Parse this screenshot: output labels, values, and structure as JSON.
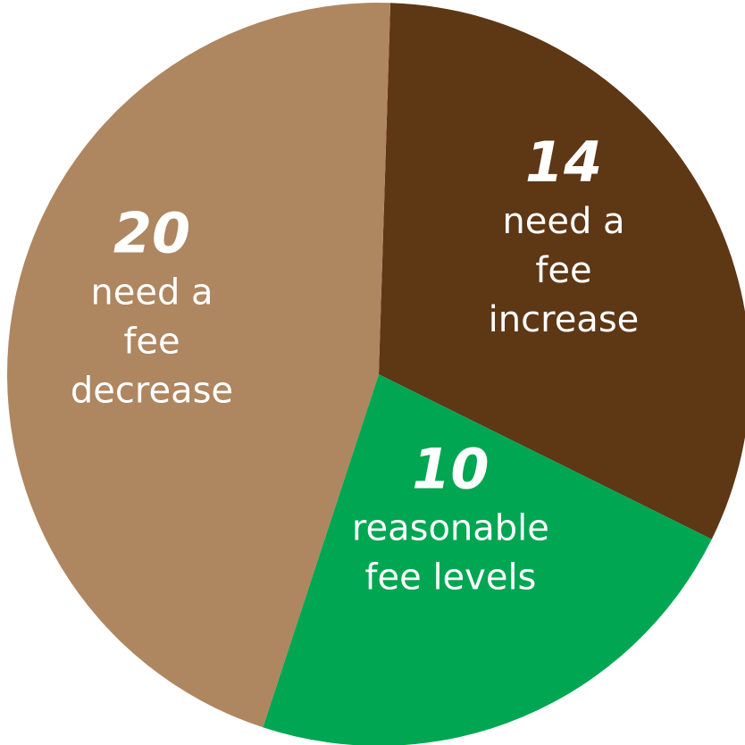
{
  "chart_data": {
    "type": "pie",
    "slices": [
      {
        "value": 14,
        "value_label": "14",
        "label_lines": [
          "need a",
          "fee",
          "increase"
        ],
        "color": "#5e3715"
      },
      {
        "value": 10,
        "value_label": "10",
        "label_lines": [
          "reasonable",
          "fee levels"
        ],
        "color": "#00a651"
      },
      {
        "value": 20,
        "value_label": "20",
        "label_lines": [
          "need a",
          "fee",
          "decrease"
        ],
        "color": "#ae8660"
      }
    ]
  }
}
